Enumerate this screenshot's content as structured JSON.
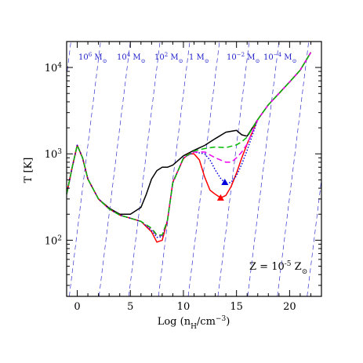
{
  "chart_data": {
    "type": "line",
    "xlabel": "Log (n_H/cm^-3)",
    "ylabel": "T [K]",
    "xlim": [
      -1,
      23
    ],
    "ylim_log10": [
      1.35,
      4.3
    ],
    "y_scale": "log",
    "x_ticks": [
      0,
      5,
      10,
      15,
      20
    ],
    "x_tick_labels": [
      "0",
      "5",
      "10",
      "15",
      "20"
    ],
    "y_ticks": [
      100,
      1000,
      10000
    ],
    "y_tick_labels": [
      [
        "10",
        "2"
      ],
      [
        "10",
        "3"
      ],
      [
        "10",
        "4"
      ]
    ],
    "annotation": {
      "prefix": "Z = 10",
      "exp": "-5",
      "mid": " Z",
      "sub": "⊙"
    },
    "jeans_mass_lines": {
      "color": "#3333cc",
      "style": "dashed",
      "labels": [
        {
          "base": "10",
          "exp": "6",
          "unit": " M",
          "sub": "⊙"
        },
        {
          "base": "10",
          "exp": "4",
          "unit": " M",
          "sub": "⊙"
        },
        {
          "base": "10",
          "exp": "2",
          "unit": " M",
          "sub": "⊙"
        },
        {
          "base": "1",
          "exp": "",
          "unit": " M",
          "sub": "⊙"
        },
        {
          "base": "10",
          "exp": "−2",
          "unit": " M",
          "sub": "⊙"
        },
        {
          "base": "10",
          "exp": "−4",
          "unit": " M",
          "sub": "⊙"
        }
      ],
      "lines": [
        {
          "x_at_top": -0.6,
          "x_at_bottom": -3.55
        },
        {
          "x_at_top": 2.2,
          "x_at_bottom": -0.75
        },
        {
          "x_at_top": 5.0,
          "x_at_bottom": 2.05
        },
        {
          "x_at_top": 7.8,
          "x_at_bottom": 4.85
        },
        {
          "x_at_top": 10.6,
          "x_at_bottom": 7.65
        },
        {
          "x_at_top": 13.4,
          "x_at_bottom": 10.45
        },
        {
          "x_at_top": 16.2,
          "x_at_bottom": 13.25
        },
        {
          "x_at_top": 19.0,
          "x_at_bottom": 16.05
        },
        {
          "x_at_top": 21.8,
          "x_at_bottom": 18.85
        },
        {
          "x_at_top": 24.6,
          "x_at_bottom": 21.65
        },
        {
          "x_at_top": 27.4,
          "x_at_bottom": 24.45
        }
      ]
    },
    "series": [
      {
        "color": "#000000",
        "dash": "solid",
        "x": [
          -1,
          -0.5,
          0,
          0.5,
          1.0,
          2.0,
          3.0,
          4.0,
          5.0,
          6.0,
          6.5,
          7.0,
          7.5,
          8.0,
          8.5,
          9.0,
          10.0,
          11.0,
          12.0,
          13.0,
          14.0,
          15.0,
          15.5,
          16.0,
          17.0,
          18.0,
          19.0,
          20.0,
          21.0,
          22.0
        ],
        "y": [
          340,
          680,
          1260,
          900,
          510,
          300,
          235,
          200,
          200,
          240,
          340,
          510,
          640,
          700,
          700,
          740,
          950,
          1100,
          1250,
          1500,
          1780,
          1870,
          1660,
          1600,
          2500,
          3700,
          5000,
          6800,
          9300,
          15000
        ]
      },
      {
        "color": "#ff0000",
        "dash": "solid",
        "x": [
          -1,
          -0.5,
          0,
          0.5,
          1.0,
          2.0,
          3.0,
          4.0,
          5.0,
          6.0,
          7.0,
          7.5,
          8.0,
          8.5,
          9.0,
          10.0,
          10.5,
          11.0,
          11.5,
          12.0,
          12.5,
          13.0,
          13.5,
          14.0,
          14.5,
          15.0,
          15.5,
          16.0,
          17.0,
          18.0,
          19.0,
          20.0,
          21.0,
          22.0
        ],
        "y": [
          340,
          680,
          1260,
          900,
          510,
          300,
          230,
          195,
          180,
          165,
          125,
          95,
          100,
          170,
          470,
          880,
          1000,
          1000,
          850,
          540,
          380,
          340,
          310,
          330,
          420,
          600,
          900,
          1300,
          2500,
          3700,
          5000,
          6800,
          9300,
          15000
        ]
      },
      {
        "color": "#0000dd",
        "dash": "dotted",
        "x": [
          -1,
          -0.5,
          0,
          0.5,
          1.0,
          2.0,
          3.0,
          4.0,
          5.0,
          6.0,
          7.0,
          7.5,
          8.0,
          8.5,
          9.0,
          10.0,
          11.0,
          12.0,
          12.5,
          13.0,
          13.5,
          14.0,
          14.5,
          15.0,
          15.5,
          16.0,
          17.0,
          18.0,
          19.0,
          20.0,
          21.0,
          22.0
        ],
        "y": [
          340,
          680,
          1260,
          900,
          510,
          300,
          230,
          195,
          180,
          165,
          130,
          108,
          110,
          170,
          460,
          900,
          1050,
          1000,
          850,
          650,
          520,
          450,
          470,
          560,
          760,
          1100,
          2500,
          3700,
          5000,
          6800,
          9300,
          15000
        ]
      },
      {
        "color": "#ee00ee",
        "dash": "dashed",
        "x": [
          -1,
          -0.5,
          0,
          0.5,
          1.0,
          2.0,
          3.0,
          4.0,
          5.0,
          6.0,
          7.0,
          7.5,
          8.0,
          8.5,
          9.0,
          10.0,
          11.0,
          12.0,
          13.0,
          14.0,
          14.5,
          15.0,
          15.5,
          16.0,
          17.0,
          18.0,
          19.0,
          20.0,
          21.0,
          22.0
        ],
        "y": [
          340,
          680,
          1260,
          900,
          510,
          300,
          230,
          195,
          180,
          165,
          135,
          113,
          113,
          170,
          460,
          900,
          1050,
          1050,
          900,
          800,
          800,
          900,
          1050,
          1300,
          2500,
          3700,
          5000,
          6800,
          9300,
          15000
        ]
      },
      {
        "color": "#00bb00",
        "dash": "dashed",
        "x": [
          -1,
          -0.5,
          0,
          0.5,
          1.0,
          2.0,
          3.0,
          4.0,
          5.0,
          6.0,
          7.0,
          7.5,
          8.0,
          8.5,
          9.0,
          10.0,
          11.0,
          12.0,
          13.0,
          14.0,
          15.0,
          15.5,
          16.0,
          17.0,
          18.0,
          19.0,
          20.0,
          21.0,
          22.0
        ],
        "y": [
          340,
          680,
          1260,
          900,
          510,
          300,
          230,
          195,
          180,
          165,
          138,
          115,
          115,
          170,
          460,
          900,
          1080,
          1150,
          1200,
          1180,
          1270,
          1380,
          1560,
          2500,
          3700,
          5000,
          6800,
          9300,
          15000
        ]
      }
    ],
    "markers": [
      {
        "shape": "triangle",
        "color": "#ff0000",
        "x": 13.5,
        "y": 310
      },
      {
        "shape": "triangle",
        "color": "#0000dd",
        "x": 13.9,
        "y": 470
      }
    ]
  }
}
